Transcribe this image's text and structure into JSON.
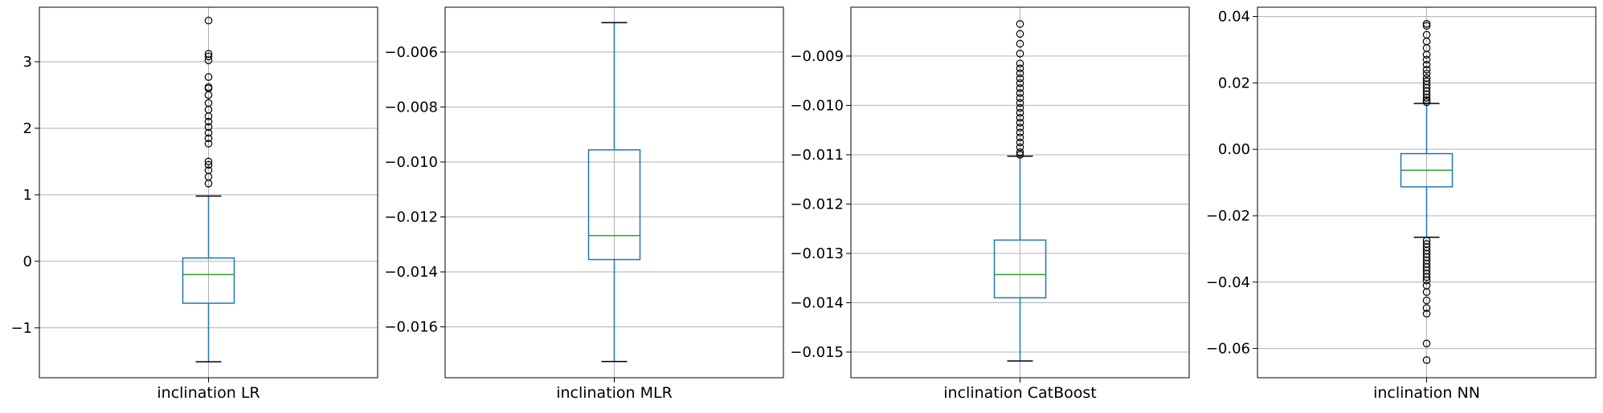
{
  "colors": {
    "box": "#1f77b4",
    "median": "#2ca02c",
    "grid": "#b0b0b0",
    "flier": "#000000"
  },
  "chart_data": [
    {
      "type": "boxplot",
      "category": "inclination LR",
      "grid": true,
      "ylim": [
        -1.75,
        3.82
      ],
      "yticks": [
        -1,
        0,
        1,
        2,
        3
      ],
      "ytick_labels": [
        "−1",
        "0",
        "1",
        "2",
        "3"
      ],
      "whisker_low": -1.51,
      "q1": -0.63,
      "median": -0.2,
      "q3": 0.05,
      "whisker_high": 0.98,
      "outliers": [
        1.17,
        1.27,
        1.37,
        1.45,
        1.5,
        1.77,
        1.85,
        1.93,
        2.02,
        2.1,
        2.18,
        2.28,
        2.38,
        2.5,
        2.6,
        2.62,
        2.77,
        3.02,
        3.08,
        3.12,
        3.62
      ]
    },
    {
      "type": "boxplot",
      "category": "inclination MLR",
      "grid": true,
      "ylim": [
        -0.01785,
        -0.00437
      ],
      "yticks": [
        -0.016,
        -0.014,
        -0.012,
        -0.01,
        -0.008,
        -0.006
      ],
      "ytick_labels": [
        "−0.016",
        "−0.014",
        "−0.012",
        "−0.010",
        "−0.008",
        "−0.006"
      ],
      "whisker_low": -0.01726,
      "q1": -0.01355,
      "median": -0.01268,
      "q3": -0.00956,
      "whisker_high": -0.00493,
      "outliers": []
    },
    {
      "type": "boxplot",
      "category": "inclination CatBoost",
      "grid": true,
      "ylim": [
        -0.01552,
        -0.00801
      ],
      "yticks": [
        -0.015,
        -0.014,
        -0.013,
        -0.012,
        -0.011,
        -0.01,
        -0.009
      ],
      "ytick_labels": [
        "−0.015",
        "−0.014",
        "−0.013",
        "−0.012",
        "−0.011",
        "−0.010",
        "−0.009"
      ],
      "whisker_low": -0.01518,
      "q1": -0.0139,
      "median": -0.01343,
      "q3": -0.01273,
      "whisker_high": -0.01103,
      "outliers": [
        -0.011,
        -0.01095,
        -0.01085,
        -0.01075,
        -0.01065,
        -0.01055,
        -0.01045,
        -0.01035,
        -0.01025,
        -0.01015,
        -0.01005,
        -0.00995,
        -0.00985,
        -0.00975,
        -0.00965,
        -0.00955,
        -0.00945,
        -0.00935,
        -0.00925,
        -0.00915,
        -0.00895,
        -0.00875,
        -0.00855,
        -0.00835
      ]
    },
    {
      "type": "boxplot",
      "category": "inclination NN",
      "grid": true,
      "ylim": [
        -0.0688,
        0.0428
      ],
      "yticks": [
        -0.06,
        -0.04,
        -0.02,
        0.0,
        0.02,
        0.04
      ],
      "ytick_labels": [
        "−0.06",
        "−0.04",
        "−0.02",
        "0.00",
        "0.02",
        "0.04"
      ],
      "whisker_low": -0.0265,
      "q1": -0.0113,
      "median": -0.0063,
      "q3": -0.0013,
      "whisker_high": 0.0138,
      "outliers": [
        0.0142,
        0.0148,
        0.0155,
        0.0165,
        0.0175,
        0.0185,
        0.0195,
        0.0205,
        0.0215,
        0.0228,
        0.024,
        0.0255,
        0.027,
        0.0285,
        0.0305,
        0.0325,
        0.0345,
        0.0372,
        0.0378,
        -0.0275,
        -0.0285,
        -0.0295,
        -0.0305,
        -0.0315,
        -0.0325,
        -0.0335,
        -0.0345,
        -0.0355,
        -0.0365,
        -0.0375,
        -0.0385,
        -0.0395,
        -0.041,
        -0.043,
        -0.0455,
        -0.0478,
        -0.0495,
        -0.0585,
        -0.0635
      ]
    }
  ]
}
